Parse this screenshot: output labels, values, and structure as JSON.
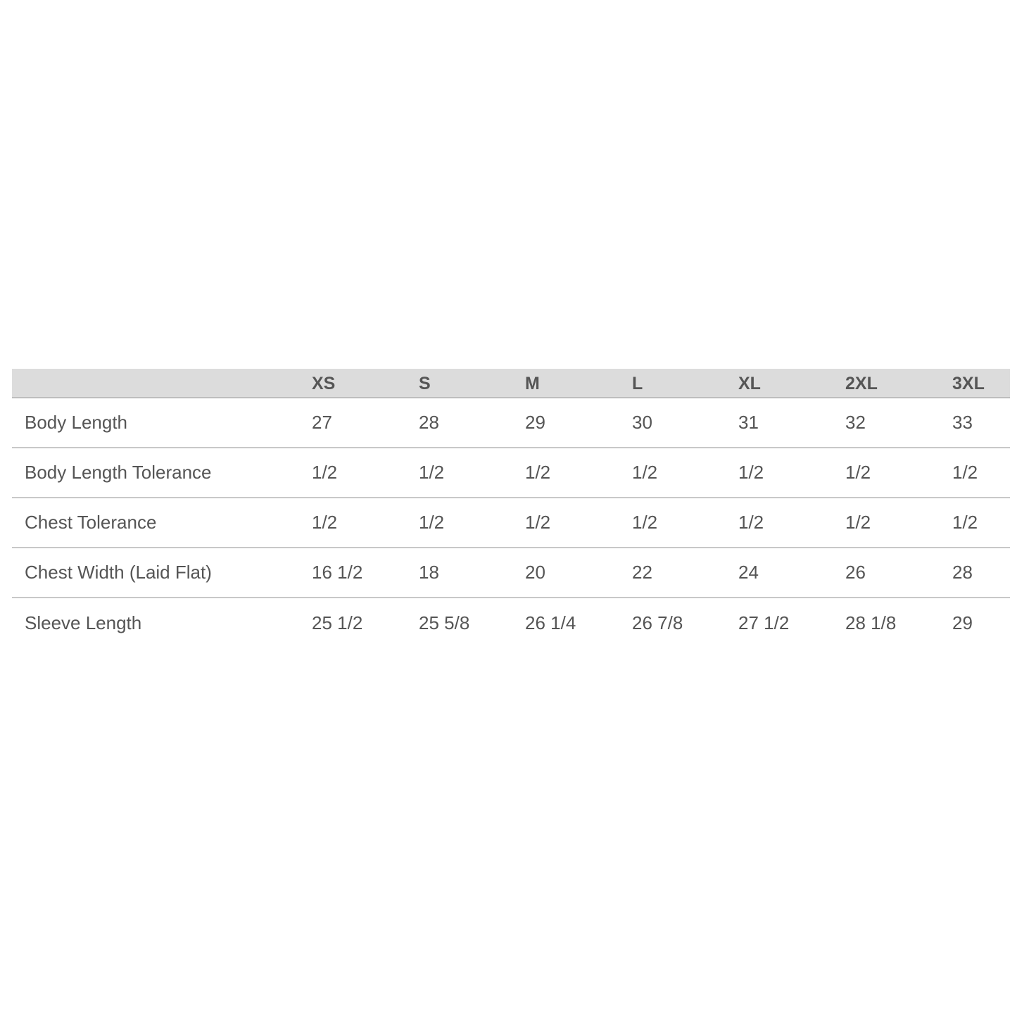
{
  "table": {
    "columns": [
      "",
      "XS",
      "S",
      "M",
      "L",
      "XL",
      "2XL",
      "3XL"
    ],
    "rows": [
      {
        "label": "Body Length",
        "values": [
          "27",
          "28",
          "29",
          "30",
          "31",
          "32",
          "33"
        ]
      },
      {
        "label": "Body Length Tolerance",
        "values": [
          "1/2",
          "1/2",
          "1/2",
          "1/2",
          "1/2",
          "1/2",
          "1/2"
        ]
      },
      {
        "label": "Chest Tolerance",
        "values": [
          "1/2",
          "1/2",
          "1/2",
          "1/2",
          "1/2",
          "1/2",
          "1/2"
        ]
      },
      {
        "label": "Chest Width (Laid Flat)",
        "values": [
          "16 1/2",
          "18",
          "20",
          "22",
          "24",
          "26",
          "28"
        ]
      },
      {
        "label": "Sleeve Length",
        "values": [
          "25 1/2",
          "25 5/8",
          "26 1/4",
          "26 7/8",
          "27 1/2",
          "28 1/8",
          "29"
        ]
      }
    ],
    "colors": {
      "header_bg": "#dcdcdc",
      "text": "#555555",
      "divider": "#c8c8c8"
    }
  }
}
